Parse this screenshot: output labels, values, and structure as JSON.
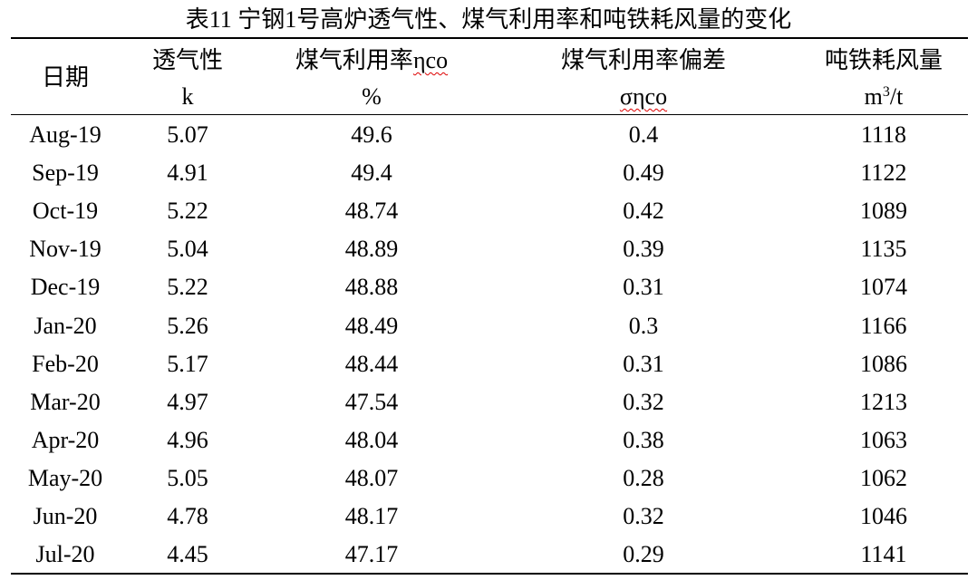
{
  "title": "表11  宁钢1号高炉透气性、煤气利用率和吨铁耗风量的变化",
  "table": {
    "header": [
      {
        "label": "日期"
      },
      {
        "label": "透气性",
        "unit": "k"
      },
      {
        "label": "煤气利用率",
        "symbol": "ηco",
        "unit": "%"
      },
      {
        "label": "煤气利用率偏差",
        "unit": "σηco"
      },
      {
        "label": "吨铁耗风量",
        "unit_base": "m",
        "unit_sup": "3",
        "unit_rest": "/t"
      }
    ],
    "rows": [
      [
        "Aug-19",
        "5.07",
        "49.6",
        "0.4",
        "1118"
      ],
      [
        "Sep-19",
        "4.91",
        "49.4",
        "0.49",
        "1122"
      ],
      [
        "Oct-19",
        "5.22",
        "48.74",
        "0.42",
        "1089"
      ],
      [
        "Nov-19",
        "5.04",
        "48.89",
        "0.39",
        "1135"
      ],
      [
        "Dec-19",
        "5.22",
        "48.88",
        "0.31",
        "1074"
      ],
      [
        "Jan-20",
        "5.26",
        "48.49",
        "0.3",
        "1166"
      ],
      [
        "Feb-20",
        "5.17",
        "48.44",
        "0.31",
        "1086"
      ],
      [
        "Mar-20",
        "4.97",
        "47.54",
        "0.32",
        "1213"
      ],
      [
        "Apr-20",
        "4.96",
        "48.04",
        "0.38",
        "1063"
      ],
      [
        "May-20",
        "5.05",
        "48.07",
        "0.28",
        "1062"
      ],
      [
        "Jun-20",
        "4.78",
        "48.17",
        "0.32",
        "1046"
      ],
      [
        "Jul-20",
        "4.45",
        "47.17",
        "0.29",
        "1141"
      ]
    ]
  }
}
